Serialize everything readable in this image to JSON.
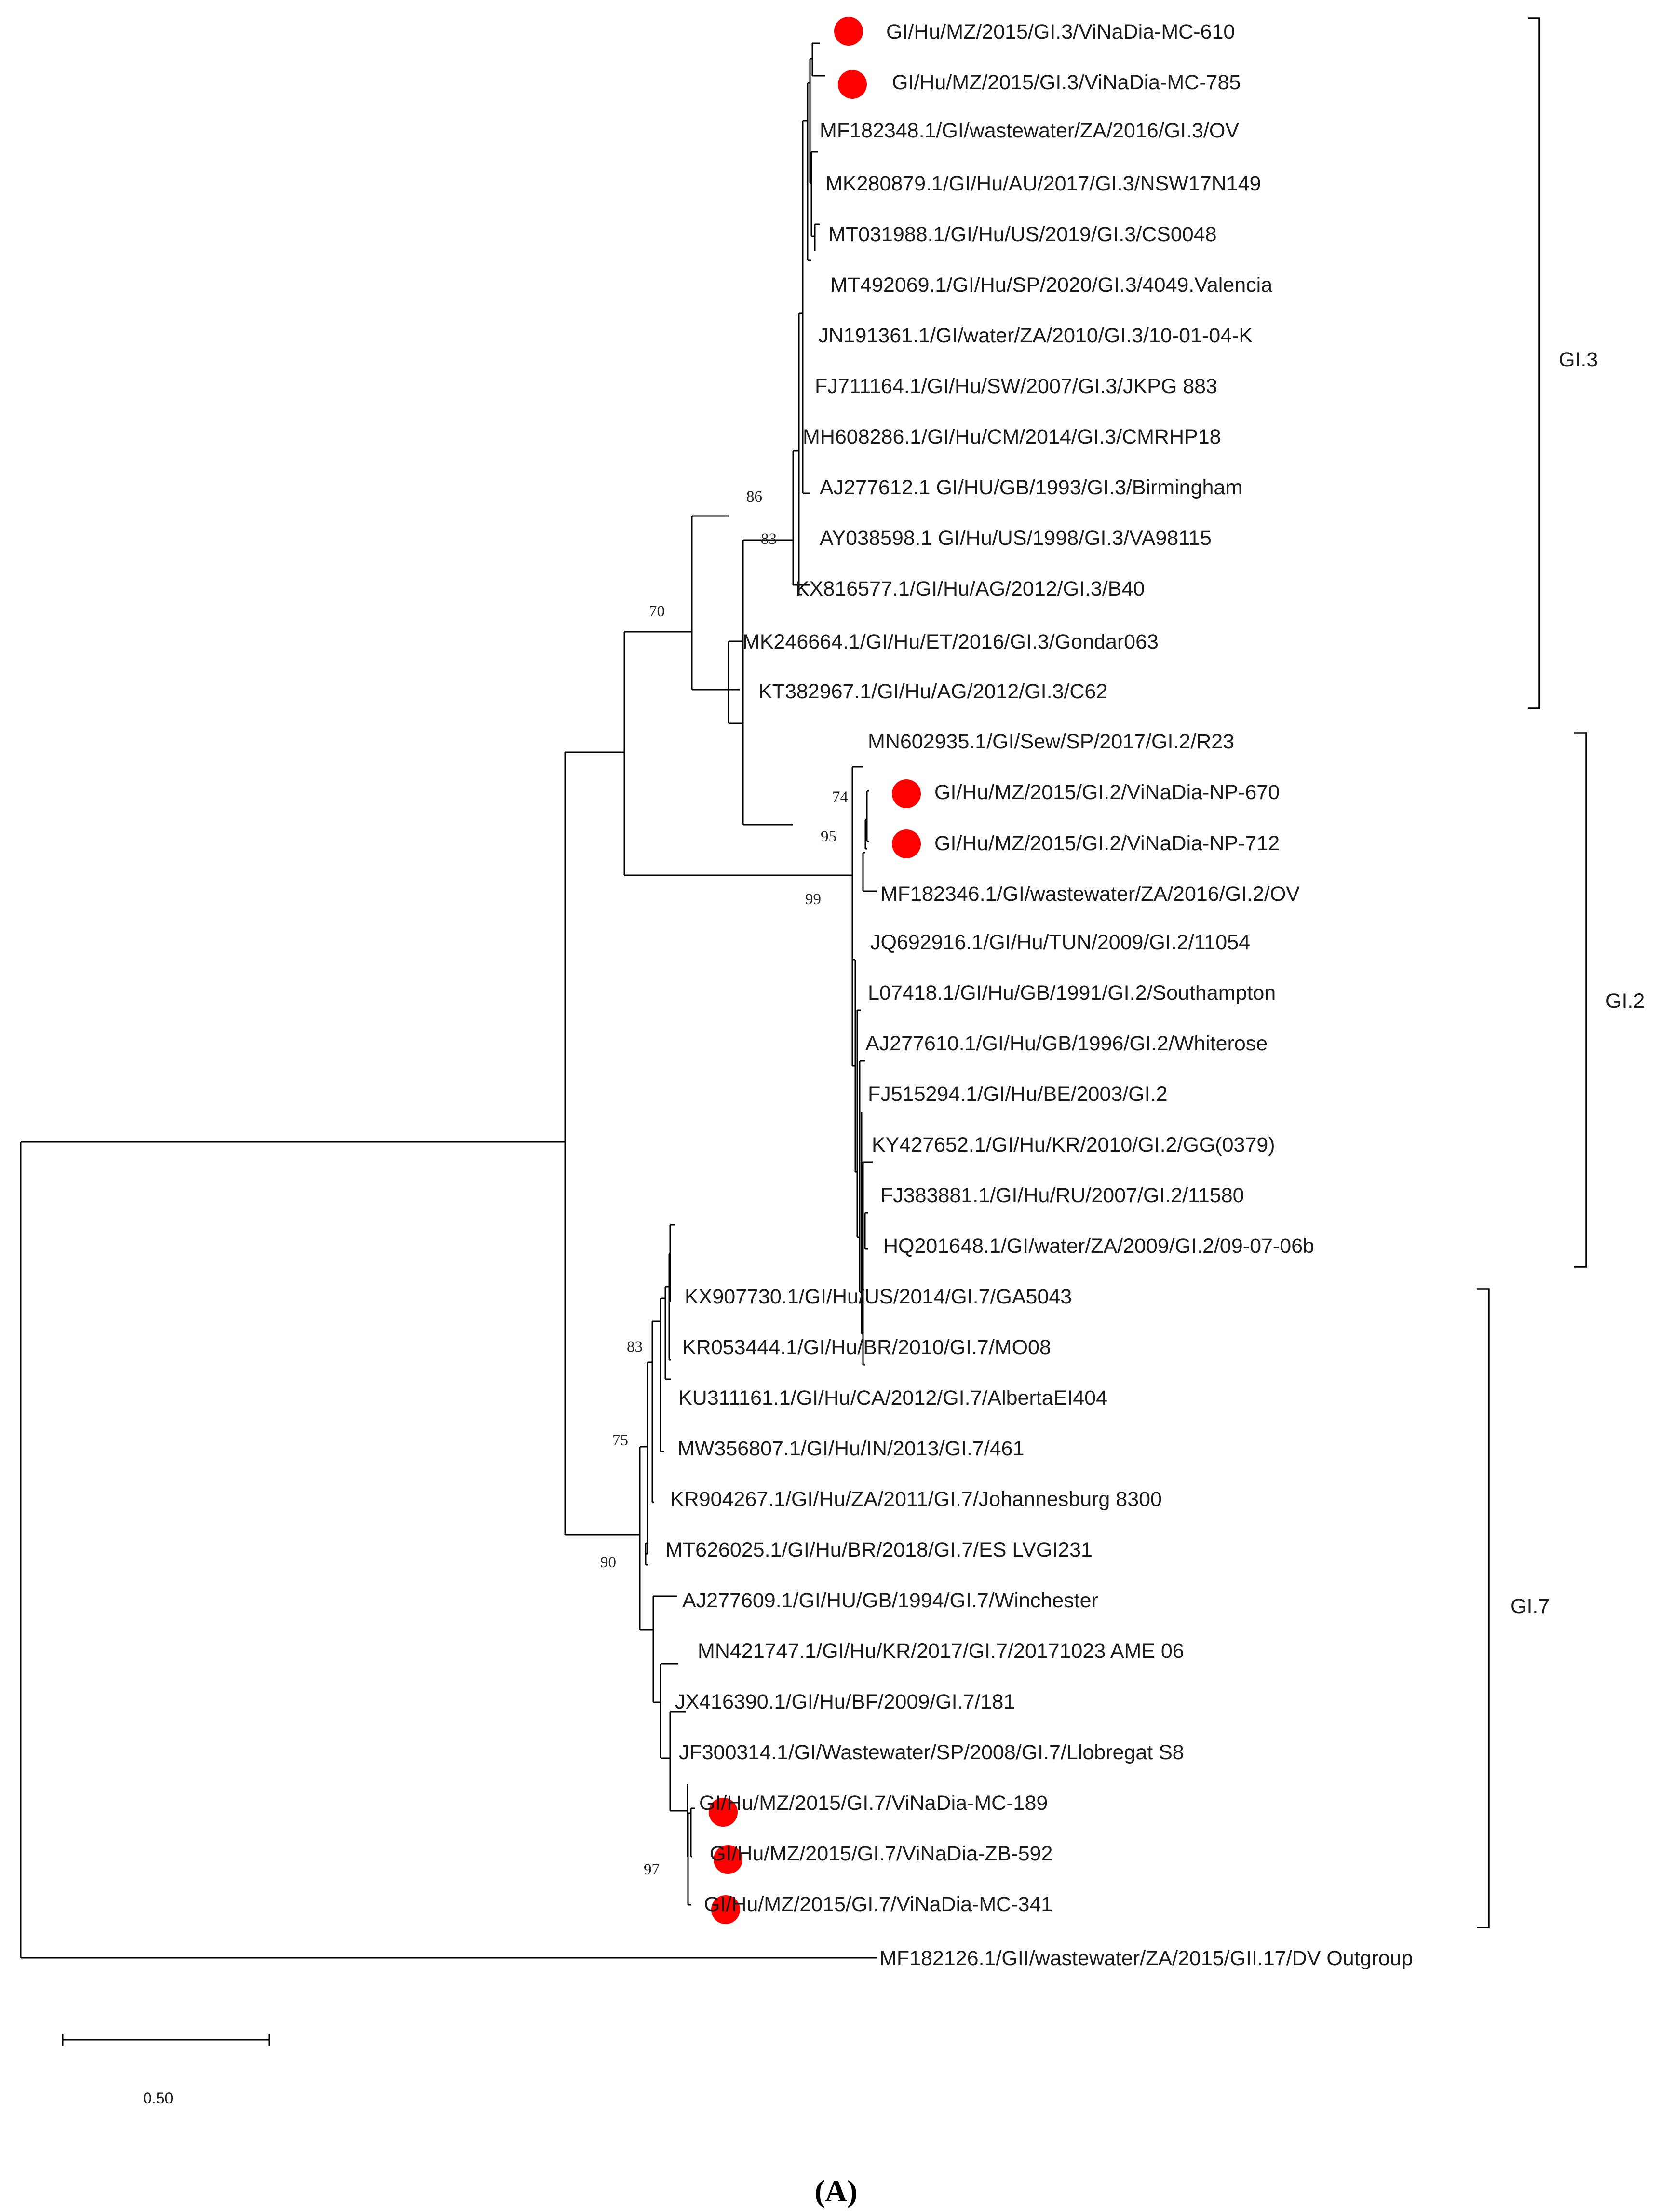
{
  "colors": {
    "marker": "#ff0000",
    "line": "#000000",
    "text": "#1a1a1a"
  },
  "clades": [
    {
      "id": "gi3",
      "label": "GI.3"
    },
    {
      "id": "gi2",
      "label": "GI.2"
    },
    {
      "id": "gi7",
      "label": "GI.7"
    }
  ],
  "leaves": [
    {
      "label": "GI/Hu/MZ/2015/GI.3/ViNaDia-MC-610",
      "marked": true
    },
    {
      "label": "GI/Hu/MZ/2015/GI.3/ViNaDia-MC-785",
      "marked": true
    },
    {
      "label": "MF182348.1/GI/wastewater/ZA/2016/GI.3/OV",
      "marked": false
    },
    {
      "label": "MK280879.1/GI/Hu/AU/2017/GI.3/NSW17N149",
      "marked": false
    },
    {
      "label": "MT031988.1/GI/Hu/US/2019/GI.3/CS0048",
      "marked": false
    },
    {
      "label": "MT492069.1/GI/Hu/SP/2020/GI.3/4049.Valencia",
      "marked": false
    },
    {
      "label": "JN191361.1/GI/water/ZA/2010/GI.3/10-01-04-K",
      "marked": false
    },
    {
      "label": "FJ711164.1/GI/Hu/SW/2007/GI.3/JKPG 883",
      "marked": false
    },
    {
      "label": "MH608286.1/GI/Hu/CM/2014/GI.3/CMRHP18",
      "marked": false
    },
    {
      "label": "AJ277612.1 GI/HU/GB/1993/GI.3/Birmingham",
      "marked": false
    },
    {
      "label": "AY038598.1 GI/Hu/US/1998/GI.3/VA98115",
      "marked": false
    },
    {
      "label": "KX816577.1/GI/Hu/AG/2012/GI.3/B40",
      "marked": false
    },
    {
      "label": "MK246664.1/GI/Hu/ET/2016/GI.3/Gondar063",
      "marked": false
    },
    {
      "label": "KT382967.1/GI/Hu/AG/2012/GI.3/C62",
      "marked": false
    },
    {
      "label": "MN602935.1/GI/Sew/SP/2017/GI.2/R23",
      "marked": false
    },
    {
      "label": "GI/Hu/MZ/2015/GI.2/ViNaDia-NP-670",
      "marked": true
    },
    {
      "label": "GI/Hu/MZ/2015/GI.2/ViNaDia-NP-712",
      "marked": true
    },
    {
      "label": "MF182346.1/GI/wastewater/ZA/2016/GI.2/OV",
      "marked": false
    },
    {
      "label": "JQ692916.1/GI/Hu/TUN/2009/GI.2/11054",
      "marked": false
    },
    {
      "label": "L07418.1/GI/Hu/GB/1991/GI.2/Southampton",
      "marked": false
    },
    {
      "label": "AJ277610.1/GI/Hu/GB/1996/GI.2/Whiterose",
      "marked": false
    },
    {
      "label": "FJ515294.1/GI/Hu/BE/2003/GI.2",
      "marked": false
    },
    {
      "label": "KY427652.1/GI/Hu/KR/2010/GI.2/GG(0379)",
      "marked": false
    },
    {
      "label": "FJ383881.1/GI/Hu/RU/2007/GI.2/11580",
      "marked": false
    },
    {
      "label": "HQ201648.1/GI/water/ZA/2009/GI.2/09-07-06b",
      "marked": false
    },
    {
      "label": "KX907730.1/GI/Hu/US/2014/GI.7/GA5043",
      "marked": false
    },
    {
      "label": "KR053444.1/GI/Hu/BR/2010/GI.7/MO08",
      "marked": false
    },
    {
      "label": "KU311161.1/GI/Hu/CA/2012/GI.7/AlbertaEI404",
      "marked": false
    },
    {
      "label": "MW356807.1/GI/Hu/IN/2013/GI.7/461",
      "marked": false
    },
    {
      "label": "KR904267.1/GI/Hu/ZA/2011/GI.7/Johannesburg 8300",
      "marked": false
    },
    {
      "label": "MT626025.1/GI/Hu/BR/2018/GI.7/ES LVGI231",
      "marked": false
    },
    {
      "label": "AJ277609.1/GI/HU/GB/1994/GI.7/Winchester",
      "marked": false
    },
    {
      "label": "MN421747.1/GI/Hu/KR/2017/GI.7/20171023 AME 06",
      "marked": false
    },
    {
      "label": "JX416390.1/GI/Hu/BF/2009/GI.7/181",
      "marked": false
    },
    {
      "label": "JF300314.1/GI/Wastewater/SP/2008/GI.7/Llobregat S8",
      "marked": false
    },
    {
      "label": "GI/Hu/MZ/2015/GI.7/ViNaDia-MC-189",
      "marked": true
    },
    {
      "label": "GI/Hu/MZ/2015/GI.7/ViNaDia-ZB-592",
      "marked": true
    },
    {
      "label": "GI/Hu/MZ/2015/GI.7/ViNaDia-MC-341",
      "marked": true
    },
    {
      "label": "MF182126.1/GII/wastewater/ZA/2015/GII.17/DV Outgroup",
      "marked": false
    }
  ],
  "bootstrap": [
    "86",
    "83",
    "70",
    "74",
    "95",
    "99",
    "83",
    "75",
    "90",
    "97"
  ],
  "scale_bar": {
    "label": "0.50"
  },
  "panel_label": "(A)"
}
